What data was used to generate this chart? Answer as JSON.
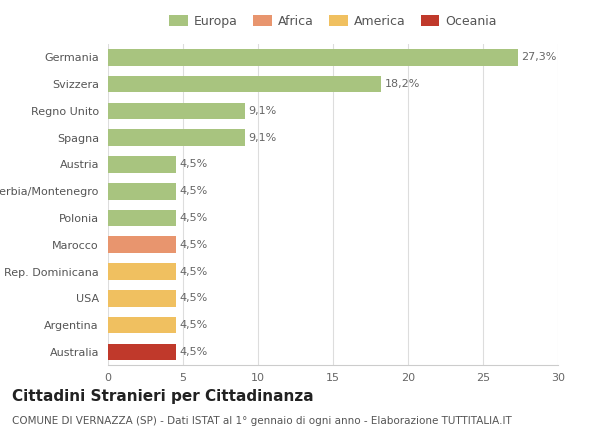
{
  "categories": [
    "Germania",
    "Svizzera",
    "Regno Unito",
    "Spagna",
    "Austria",
    "Serbia/Montenegro",
    "Polonia",
    "Marocco",
    "Rep. Dominicana",
    "USA",
    "Argentina",
    "Australia"
  ],
  "values": [
    27.3,
    18.2,
    9.1,
    9.1,
    4.5,
    4.5,
    4.5,
    4.5,
    4.5,
    4.5,
    4.5,
    4.5
  ],
  "labels": [
    "27,3%",
    "18,2%",
    "9,1%",
    "9,1%",
    "4,5%",
    "4,5%",
    "4,5%",
    "4,5%",
    "4,5%",
    "4,5%",
    "4,5%",
    "4,5%"
  ],
  "bar_colors": [
    "#a8c47f",
    "#a8c47f",
    "#a8c47f",
    "#a8c47f",
    "#a8c47f",
    "#a8c47f",
    "#a8c47f",
    "#e8956e",
    "#f0c060",
    "#f0c060",
    "#f0c060",
    "#c0392b"
  ],
  "continent_colors": {
    "Europa": "#a8c47f",
    "Africa": "#e8956e",
    "America": "#f0c060",
    "Oceania": "#c0392b"
  },
  "legend_order": [
    "Europa",
    "Africa",
    "America",
    "Oceania"
  ],
  "xlim": [
    0,
    30
  ],
  "xticks": [
    0,
    5,
    10,
    15,
    20,
    25,
    30
  ],
  "title": "Cittadini Stranieri per Cittadinanza",
  "subtitle": "COMUNE DI VERNAZZA (SP) - Dati ISTAT al 1° gennaio di ogni anno - Elaborazione TUTTITALIA.IT",
  "background_color": "#ffffff",
  "bar_height": 0.62,
  "title_fontsize": 11,
  "subtitle_fontsize": 7.5,
  "label_fontsize": 8,
  "tick_fontsize": 8,
  "legend_fontsize": 9
}
